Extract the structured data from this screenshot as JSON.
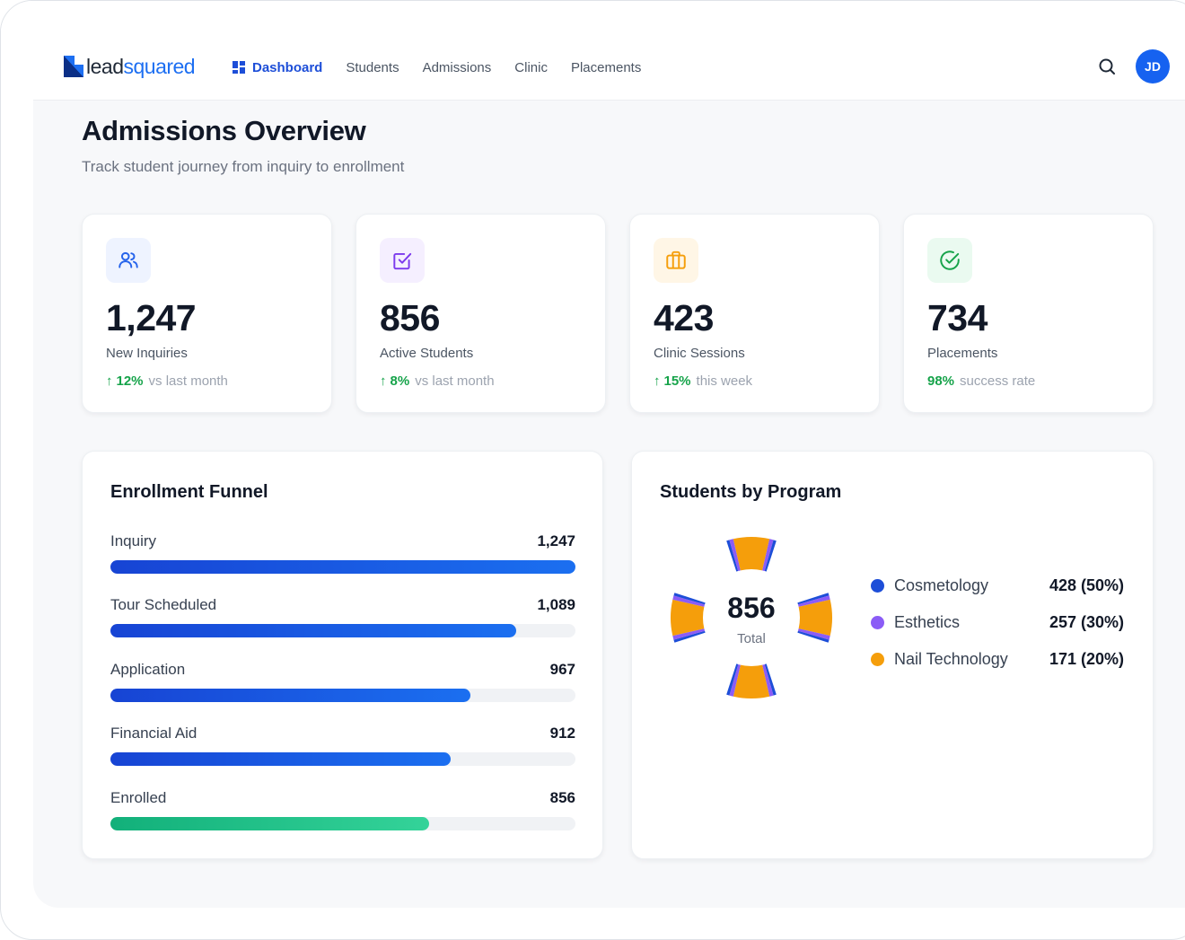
{
  "brand": {
    "lead": "lead",
    "squared": "squared",
    "color": "#1d6ff2"
  },
  "nav": {
    "items": [
      {
        "label": "Dashboard",
        "active": true,
        "icon": "dashboard-grid-icon"
      },
      {
        "label": "Students",
        "active": false
      },
      {
        "label": "Admissions",
        "active": false
      },
      {
        "label": "Clinic",
        "active": false
      },
      {
        "label": "Placements",
        "active": false
      }
    ],
    "search_icon": "search-icon",
    "avatar_initials": "JD"
  },
  "header": {
    "title": "Admissions Overview",
    "subtitle": "Track student journey from inquiry to enrollment"
  },
  "stats": [
    {
      "icon": "users-icon",
      "icon_color": "#2563eb",
      "value": "1,247",
      "label": "New Inquiries",
      "change": "12%",
      "arrow": "↑",
      "suffix": "vs last month"
    },
    {
      "icon": "checkbox-icon",
      "icon_color": "#7c3aed",
      "value": "856",
      "label": "Active Students",
      "change": "8%",
      "arrow": "↑",
      "suffix": "vs last month"
    },
    {
      "icon": "briefcase-icon",
      "icon_color": "#f59e0b",
      "value": "423",
      "label": "Clinic Sessions",
      "change": "15%",
      "arrow": "↑",
      "suffix": "this week"
    },
    {
      "icon": "check-circle-icon",
      "icon_color": "#16a34a",
      "value": "734",
      "label": "Placements",
      "change": "98%",
      "arrow": "",
      "suffix": "success rate"
    }
  ],
  "funnel": {
    "title": "Enrollment Funnel",
    "stages": [
      {
        "label": "Inquiry",
        "value": "1,247",
        "fraction": 1.0
      },
      {
        "label": "Tour Scheduled",
        "value": "1,089",
        "fraction": 0.873
      },
      {
        "label": "Application",
        "value": "967",
        "fraction": 0.775
      },
      {
        "label": "Financial Aid",
        "value": "912",
        "fraction": 0.731
      },
      {
        "label": "Enrolled",
        "value": "856",
        "fraction": 0.686
      }
    ],
    "bar_color": "#1b6ff0",
    "enrolled_color": "#22c38e"
  },
  "programs": {
    "title": "Students by Program",
    "total": "856",
    "total_label": "Total",
    "items": [
      {
        "name": "Cosmetology",
        "value": "428 (50%)",
        "share": 0.5,
        "color": "#1d4ed8"
      },
      {
        "name": "Esthetics",
        "value": "257 (30%)",
        "share": 0.3,
        "color": "#8b5cf6"
      },
      {
        "name": "Nail Technology",
        "value": "171 (20%)",
        "share": 0.2,
        "color": "#f59e0b"
      }
    ]
  }
}
